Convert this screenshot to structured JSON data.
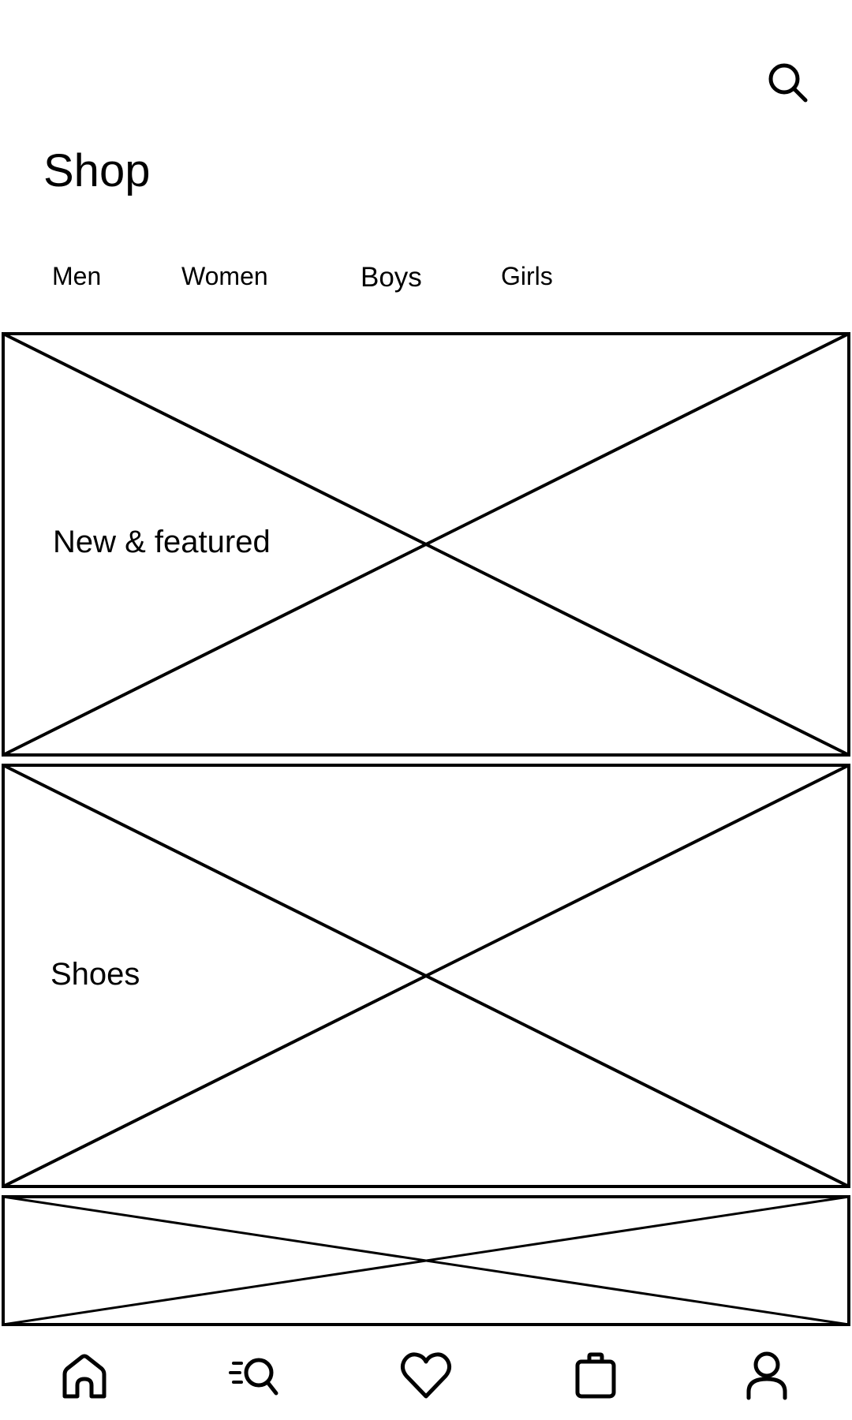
{
  "header": {
    "title": "Shop",
    "search_icon": "search-icon"
  },
  "tabs": [
    {
      "label": "Men"
    },
    {
      "label": "Women"
    },
    {
      "label": "Boys"
    },
    {
      "label": "Girls"
    }
  ],
  "cards": [
    {
      "label": "New & featured",
      "image": "image-placeholder"
    },
    {
      "label": "Shoes",
      "image": "image-placeholder"
    },
    {
      "label": "",
      "image": "image-placeholder"
    }
  ],
  "bottom_nav": {
    "items": [
      {
        "icon": "home-icon"
      },
      {
        "icon": "discover-search-icon"
      },
      {
        "icon": "heart-icon"
      },
      {
        "icon": "shopping-bag-icon"
      },
      {
        "icon": "profile-icon"
      }
    ]
  },
  "colors": {
    "background": "#ffffff",
    "stroke": "#000000"
  }
}
